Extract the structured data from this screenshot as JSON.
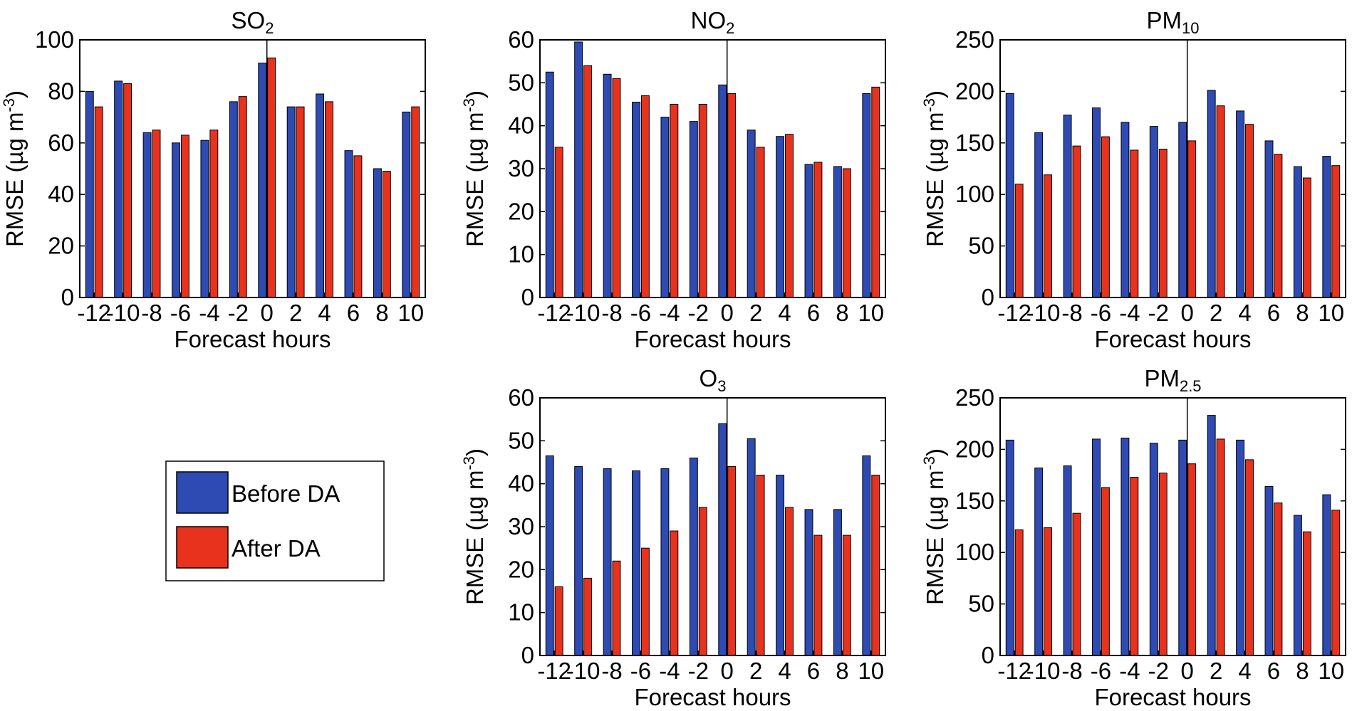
{
  "colors": {
    "before": "#2E4BB3",
    "after": "#E8321E",
    "axis": "#000000"
  },
  "legend": {
    "labels": [
      "Before DA",
      "After DA"
    ]
  },
  "chart_data": [
    {
      "type": "bar",
      "title": "SO",
      "title_subscript": "2",
      "xlabel": "Forecast hours",
      "ylabel_main": "RMSE (µg m",
      "ylabel_sup": "-3",
      "ylabel_end": ")",
      "categories": [
        "-12",
        "-10",
        "-8",
        "-6",
        "-4",
        "-2",
        "0",
        "2",
        "4",
        "6",
        "8",
        "10"
      ],
      "ylim": [
        0,
        100
      ],
      "yticks": [
        0,
        20,
        40,
        60,
        80,
        100
      ],
      "series": [
        {
          "name": "Before DA",
          "values": [
            80,
            84,
            64,
            60,
            61,
            76,
            91,
            74,
            79,
            57,
            50,
            72
          ]
        },
        {
          "name": "After DA",
          "values": [
            74,
            83,
            65,
            63,
            65,
            78,
            93,
            74,
            76,
            55,
            49,
            74
          ]
        }
      ],
      "vline_at": "0"
    },
    {
      "type": "bar",
      "title": "NO",
      "title_subscript": "2",
      "xlabel": "Forecast hours",
      "ylabel_main": "RMSE (µg m",
      "ylabel_sup": "-3",
      "ylabel_end": ")",
      "categories": [
        "-12",
        "-10",
        "-8",
        "-6",
        "-4",
        "-2",
        "0",
        "2",
        "4",
        "6",
        "8",
        "10"
      ],
      "ylim": [
        0,
        60
      ],
      "yticks": [
        0,
        10,
        20,
        30,
        40,
        50,
        60
      ],
      "series": [
        {
          "name": "Before DA",
          "values": [
            52.5,
            59.5,
            52,
            45.5,
            42,
            41,
            49.5,
            39,
            37.5,
            31,
            30.5,
            47.5
          ]
        },
        {
          "name": "After DA",
          "values": [
            35,
            54,
            51,
            47,
            45,
            45,
            47.5,
            35,
            38,
            31.5,
            30,
            49
          ]
        }
      ],
      "vline_at": "0"
    },
    {
      "type": "bar",
      "title": "PM",
      "title_subscript": "10",
      "xlabel": "Forecast hours",
      "ylabel_main": "RMSE (µg m",
      "ylabel_sup": "-3",
      "ylabel_end": ")",
      "categories": [
        "-12",
        "-10",
        "-8",
        "-6",
        "-4",
        "-2",
        "0",
        "2",
        "4",
        "6",
        "8",
        "10"
      ],
      "ylim": [
        0,
        250
      ],
      "yticks": [
        0,
        50,
        100,
        150,
        200,
        250
      ],
      "series": [
        {
          "name": "Before DA",
          "values": [
            198,
            160,
            177,
            184,
            170,
            166,
            170,
            201,
            181,
            152,
            127,
            137
          ]
        },
        {
          "name": "After DA",
          "values": [
            110,
            119,
            147,
            156,
            143,
            144,
            152,
            186,
            168,
            139,
            116,
            128
          ]
        }
      ],
      "vline_at": "0"
    },
    {
      "type": "bar",
      "title": "O",
      "title_subscript": "3",
      "xlabel": "Forecast hours",
      "ylabel_main": "RMSE (µg m",
      "ylabel_sup": "-3",
      "ylabel_end": ")",
      "categories": [
        "-12",
        "-10",
        "-8",
        "-6",
        "-4",
        "-2",
        "0",
        "2",
        "4",
        "6",
        "8",
        "10"
      ],
      "ylim": [
        0,
        60
      ],
      "yticks": [
        0,
        10,
        20,
        30,
        40,
        50,
        60
      ],
      "series": [
        {
          "name": "Before DA",
          "values": [
            46.5,
            44,
            43.5,
            43,
            43.5,
            46,
            54,
            50.5,
            42,
            34,
            34,
            46.5
          ]
        },
        {
          "name": "After DA",
          "values": [
            16,
            18,
            22,
            25,
            29,
            34.5,
            44,
            42,
            34.5,
            28,
            28,
            42
          ]
        }
      ],
      "vline_at": "0"
    },
    {
      "type": "bar",
      "title": "PM",
      "title_subscript": "2.5",
      "xlabel": "Forecast hours",
      "ylabel_main": "RMSE (µg m",
      "ylabel_sup": "-3",
      "ylabel_end": ")",
      "categories": [
        "-12",
        "-10",
        "-8",
        "-6",
        "-4",
        "-2",
        "0",
        "2",
        "4",
        "6",
        "8",
        "10"
      ],
      "ylim": [
        0,
        250
      ],
      "yticks": [
        0,
        50,
        100,
        150,
        200,
        250
      ],
      "series": [
        {
          "name": "Before DA",
          "values": [
            209,
            182,
            184,
            210,
            211,
            206,
            209,
            233,
            209,
            164,
            136,
            156
          ]
        },
        {
          "name": "After DA",
          "values": [
            122,
            124,
            138,
            163,
            173,
            177,
            186,
            210,
            190,
            148,
            120,
            141
          ]
        }
      ],
      "vline_at": "0"
    }
  ]
}
